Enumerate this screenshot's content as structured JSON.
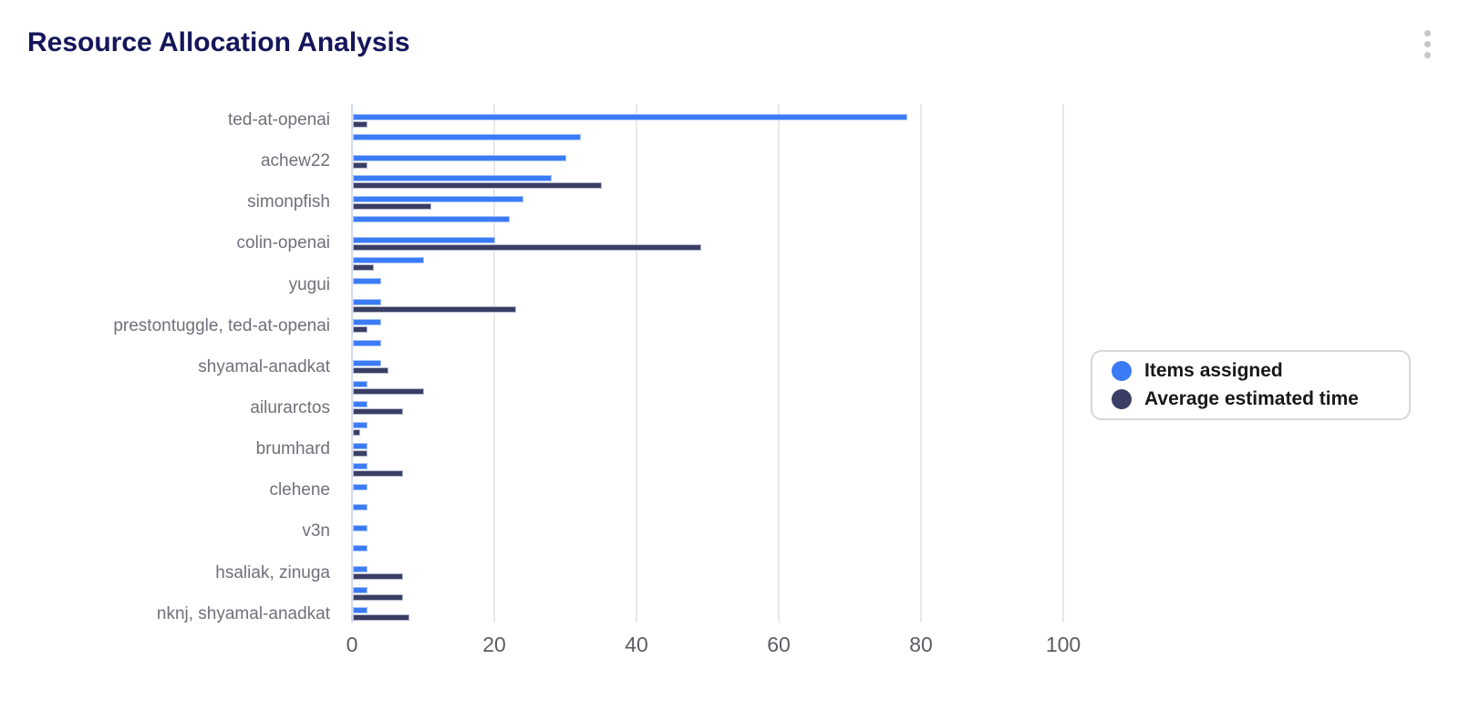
{
  "header": {
    "title": "Resource Allocation Analysis",
    "menu_icon": "kebab-vertical"
  },
  "chart_data": {
    "type": "bar",
    "orientation": "horizontal",
    "title": "Resource Allocation Analysis",
    "xlabel": "",
    "ylabel": "",
    "xlim": [
      0,
      100
    ],
    "x_ticks": [
      0,
      20,
      40,
      60,
      80,
      100
    ],
    "grid": "vertical",
    "legend_position": "right-middle",
    "categories": [
      "ted-at-openai",
      "",
      "achew22",
      "",
      "simonpfish",
      "",
      "colin-openai",
      "",
      "yugui",
      "",
      "prestontuggle, ted-at-openai",
      "",
      "shyamal-anadkat",
      "",
      "ailurarctos",
      "",
      "brumhard",
      "",
      "clehene",
      "",
      "v3n",
      "",
      "hsaliak, zinuga",
      "",
      "nknj, shyamal-anadkat"
    ],
    "series": [
      {
        "name": "Items assigned",
        "color": "#3b7bf6",
        "values": [
          78,
          32,
          30,
          28,
          24,
          22,
          20,
          10,
          4,
          4,
          4,
          4,
          4,
          2,
          2,
          2,
          2,
          2,
          2,
          2,
          2,
          2,
          2,
          2,
          2
        ]
      },
      {
        "name": "Average estimated time",
        "color": "#3a3e64",
        "values": [
          2,
          0,
          2,
          35,
          11,
          0,
          49,
          3,
          0,
          23,
          2,
          0,
          5,
          10,
          7,
          1,
          2,
          7,
          0,
          0,
          0,
          0,
          7,
          7,
          8
        ]
      }
    ]
  },
  "colors": {
    "title": "#15165a",
    "bar_blue": "#3b7bf6",
    "bar_dark": "#3a3e64",
    "gridline": "#e9e9e9",
    "axis_line": "#d3d9ee",
    "category_label": "#70707a",
    "tick_label": "#5c5d63",
    "legend_border": "#d7d7d7",
    "legend_text": "#17181a",
    "menu_dots": "#c6c6c6"
  }
}
